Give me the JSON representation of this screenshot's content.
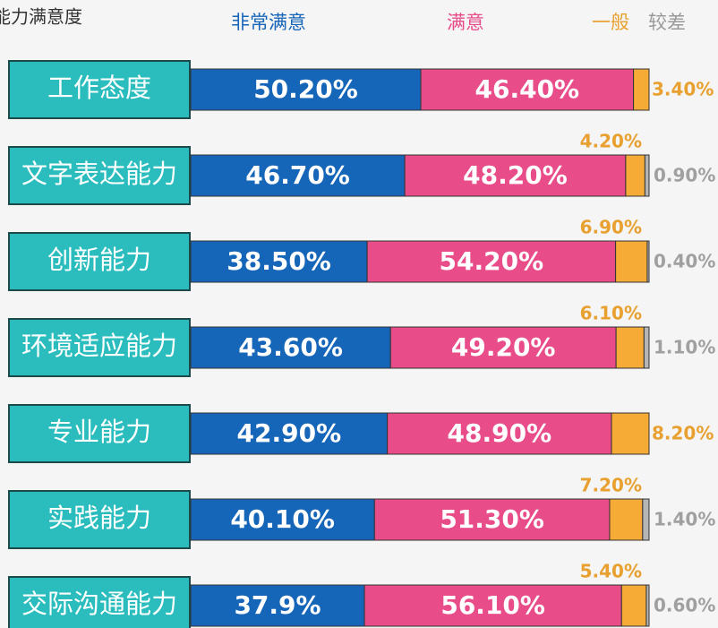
{
  "chart_data": {
    "type": "bar",
    "orientation": "horizontal",
    "stacked": true,
    "title": "能力满意度",
    "categories": [
      "工作态度",
      "文字表达能力",
      "创新能力",
      "环境适应能力",
      "专业能力",
      "实践能力",
      "交际沟通能力"
    ],
    "xlim": [
      0,
      100
    ],
    "series": [
      {
        "name": "非常满意",
        "color": "#1565b8",
        "values": [
          50.2,
          46.7,
          38.5,
          43.6,
          42.9,
          40.1,
          37.9
        ],
        "value_labels": [
          "50.20%",
          "46.70%",
          "38.50%",
          "43.60%",
          "42.90%",
          "40.10%",
          "37.9%"
        ]
      },
      {
        "name": "满意",
        "color": "#e84d8a",
        "values": [
          46.4,
          48.2,
          54.2,
          49.2,
          48.9,
          51.3,
          56.1
        ],
        "value_labels": [
          "46.40%",
          "48.20%",
          "54.20%",
          "49.20%",
          "48.90%",
          "51.30%",
          "56.10%"
        ]
      },
      {
        "name": "一般",
        "color": "#f5ab35",
        "values": [
          3.4,
          4.2,
          6.9,
          6.1,
          8.2,
          7.2,
          5.4
        ],
        "value_labels": [
          "3.40%",
          "4.20%",
          "6.90%",
          "6.10%",
          "8.20%",
          "7.20%",
          "5.40%"
        ]
      },
      {
        "name": "较差",
        "color": "#b5b5b5",
        "values": [
          null,
          0.9,
          0.4,
          1.1,
          null,
          1.4,
          0.6
        ],
        "value_labels": [
          null,
          "0.90%",
          "0.40%",
          "1.10%",
          null,
          "1.40%",
          "0.60%"
        ]
      }
    ]
  }
}
